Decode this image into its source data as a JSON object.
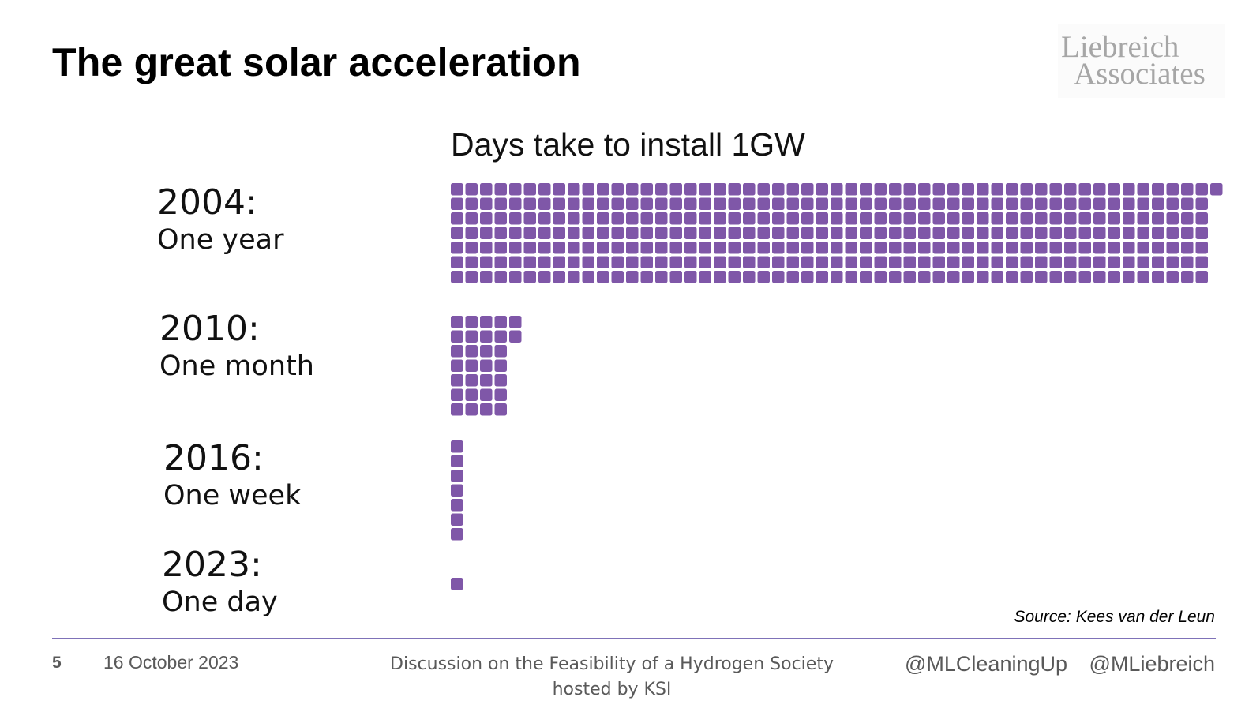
{
  "slide": {
    "title": "The great solar acceleration",
    "logo_lines": [
      "Liebreich",
      "Associates"
    ]
  },
  "chart_data": {
    "type": "waffle",
    "title": "Days take to install 1GW",
    "unit": "days",
    "rows": [
      {
        "year": "2004:",
        "duration": "One year",
        "days": 365
      },
      {
        "year": "2010:",
        "duration": "One month",
        "days": 30
      },
      {
        "year": "2016:",
        "duration": "One week",
        "days": 7
      },
      {
        "year": "2023:",
        "duration": "One day",
        "days": 1
      }
    ],
    "color": "#7f57a8",
    "source": "Source: Kees van der Leun"
  },
  "footer": {
    "page_number": "5",
    "date": "16 October 2023",
    "event_line1": "Discussion on the Feasibility of a Hydrogen Society",
    "event_line2": "hosted by KSI",
    "handles": [
      "@MLCleaningUp",
      "@MLiebreich"
    ]
  }
}
